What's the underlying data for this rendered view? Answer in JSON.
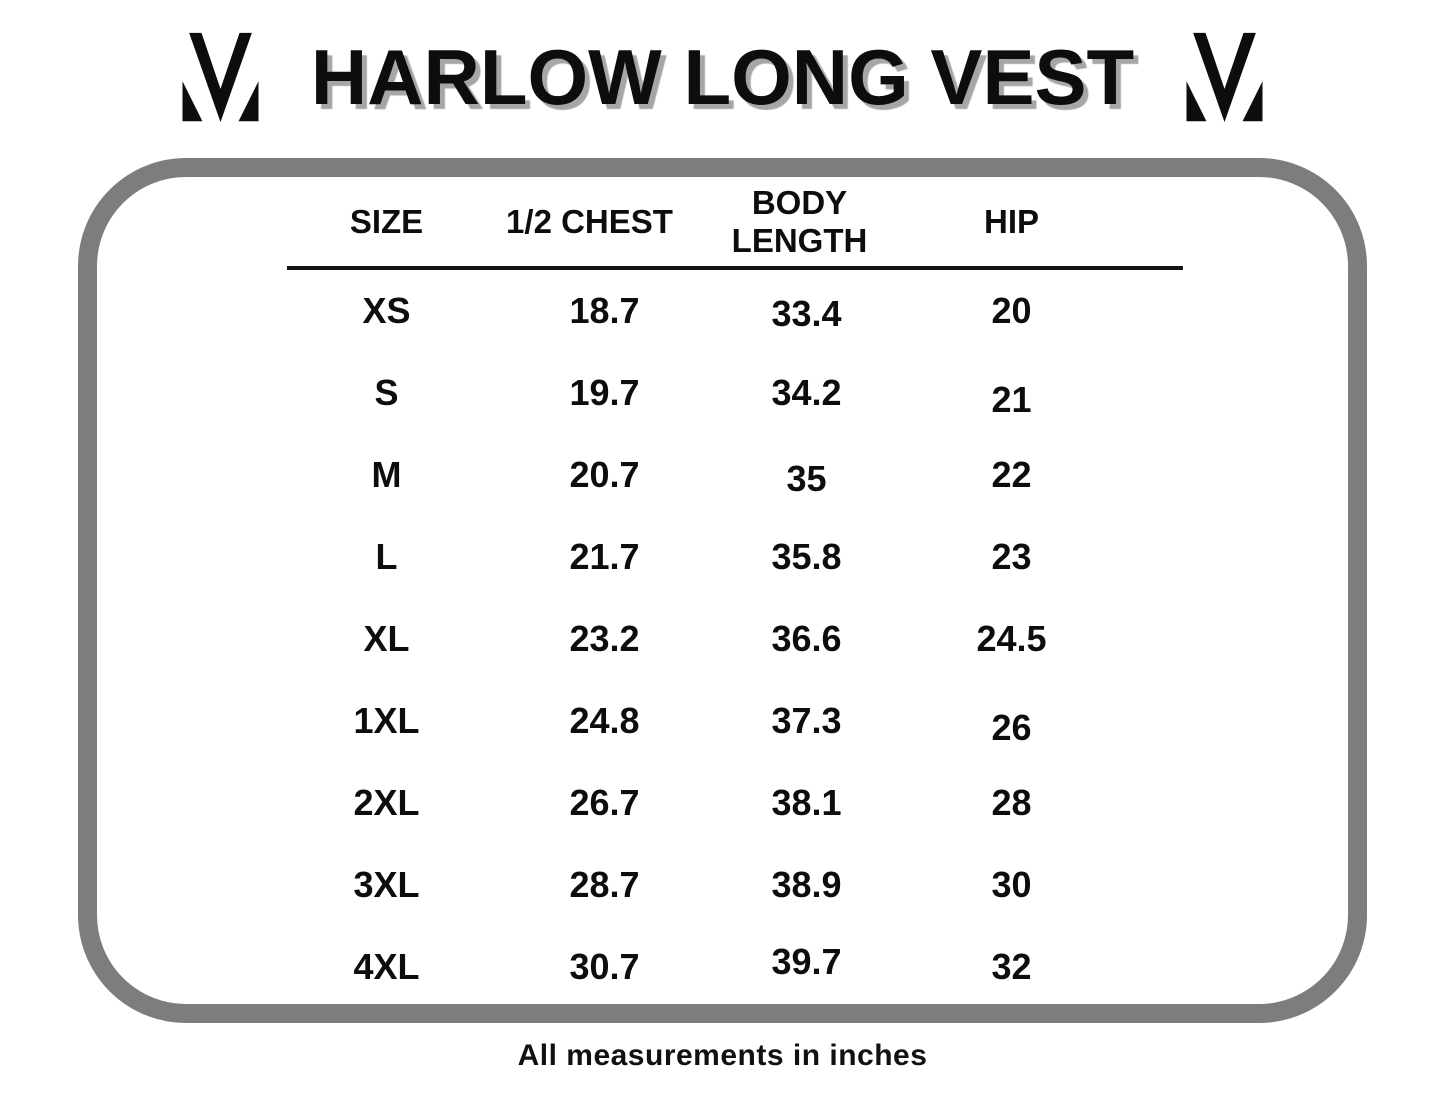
{
  "title": "HARLOW LONG VEST",
  "footer_note": "All measurements in inches",
  "logo": {
    "name": "mm-monogram",
    "description": "stylized letter M brand mark"
  },
  "colors": {
    "text": "#0d0d0d",
    "box_border": "#7d7d7d",
    "title_shadow": "#a6a6a6",
    "divider": "#141414",
    "background": "#ffffff"
  },
  "chart_data": {
    "type": "table",
    "title": "HARLOW LONG VEST",
    "columns": [
      "SIZE",
      "1/2 CHEST",
      "BODY LENGTH",
      "HIP"
    ],
    "column_keys": [
      "size",
      "half-chest",
      "body-length",
      "hip"
    ],
    "rows": [
      [
        "XS",
        "18.7",
        "33.4",
        "20"
      ],
      [
        "S",
        "19.7",
        "34.2",
        "21"
      ],
      [
        "M",
        "20.7",
        "35",
        "22"
      ],
      [
        "L",
        "21.7",
        "35.8",
        "23"
      ],
      [
        "XL",
        "23.2",
        "36.6",
        "24.5"
      ],
      [
        "1XL",
        "24.8",
        "37.3",
        "26"
      ],
      [
        "2XL",
        "26.7",
        "38.1",
        "28"
      ],
      [
        "3XL",
        "28.7",
        "38.9",
        "30"
      ],
      [
        "4XL",
        "30.7",
        "39.7",
        "32"
      ]
    ],
    "units_note": "All measurements in inches",
    "layout": {
      "header_divider": true,
      "grid": false,
      "alignment": "center"
    }
  }
}
